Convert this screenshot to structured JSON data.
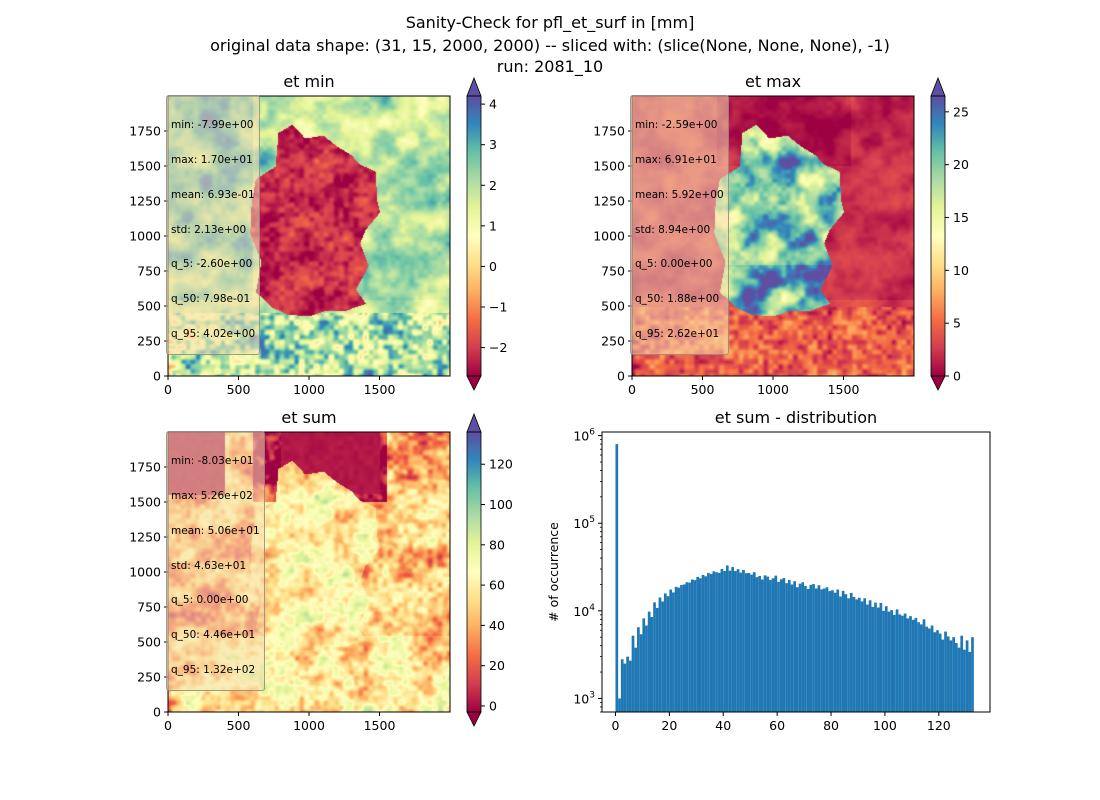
{
  "figure": {
    "title_lines": [
      "Sanity-Check for pfl_et_surf in [mm]",
      "original data shape: (31, 15, 2000, 2000) -- sliced with: (slice(None, None, None), -1)",
      "run: 2081_10"
    ],
    "colormap": "Spectral",
    "colormap_stops": [
      "#9e0142",
      "#d53e4f",
      "#f46d43",
      "#fdae61",
      "#fee08b",
      "#ffffbf",
      "#e6f598",
      "#abdda4",
      "#66c2a5",
      "#3288bd",
      "#5e4fa2"
    ],
    "hist_color": "#1f77b4",
    "statbox_color": "#f5deb3"
  },
  "chart_data": [
    {
      "type": "heatmap",
      "title": "et min",
      "xlim": [
        0,
        2000
      ],
      "ylim": [
        0,
        2000
      ],
      "xticks": [
        0,
        500,
        1000,
        1500
      ],
      "yticks": [
        0,
        250,
        500,
        750,
        1000,
        1250,
        1500,
        1750
      ],
      "colorbar": {
        "vmin": -2.7,
        "vmax": 4.2,
        "ticks": [
          -2,
          -1,
          0,
          1,
          2,
          3,
          4
        ],
        "extend": "both"
      },
      "stats": [
        "min: -7.99e+00",
        "max: 1.70e+01",
        "mean: 6.93e-01",
        "std: 2.13e+00",
        "q_5: -2.60e+00",
        "q_50: 7.98e-01",
        "q_95: 4.02e+00"
      ],
      "field": {
        "inside_germany": -2.2,
        "outside_south": 1.8,
        "outside_west": 2.6,
        "outside_north": 2.0,
        "outside_east": 2.0
      }
    },
    {
      "type": "heatmap",
      "title": "et max",
      "xlim": [
        0,
        2000
      ],
      "ylim": [
        0,
        2000
      ],
      "xticks": [
        0,
        500,
        1000,
        1500
      ],
      "yticks": [
        0,
        250,
        500,
        750,
        1000,
        1250,
        1500,
        1750
      ],
      "colorbar": {
        "vmin": 0,
        "vmax": 26.5,
        "ticks": [
          0,
          5,
          10,
          15,
          20,
          25
        ],
        "extend": "both"
      },
      "stats": [
        "min: -2.59e+00",
        "max: 6.91e+01",
        "mean: 5.92e+00",
        "std: 8.94e+00",
        "q_5: 0.00e+00",
        "q_50: 1.88e+00",
        "q_95: 2.62e+01"
      ],
      "field": {
        "inside_germany": 20,
        "outside_south": 3,
        "outside_west": 2,
        "outside_north": 1,
        "outside_east": 2
      }
    },
    {
      "type": "heatmap",
      "title": "et sum",
      "xlim": [
        0,
        2000
      ],
      "ylim": [
        0,
        2000
      ],
      "xticks": [
        0,
        500,
        1000,
        1500
      ],
      "yticks": [
        0,
        250,
        500,
        750,
        1000,
        1250,
        1500,
        1750
      ],
      "colorbar": {
        "vmin": -3,
        "vmax": 136,
        "ticks": [
          0,
          20,
          40,
          60,
          80,
          100,
          120
        ],
        "extend": "both"
      },
      "stats": [
        "min: -8.03e+01",
        "max: 5.26e+02",
        "mean: 5.06e+01",
        "std: 4.63e+01",
        "q_5: 0.00e+00",
        "q_50: 4.46e+01",
        "q_95: 1.32e+02"
      ],
      "field": {
        "inside_germany": 60,
        "outside_south": 55,
        "outside_west": 40,
        "outside_north": 0,
        "outside_east": 45
      }
    },
    {
      "type": "bar",
      "title": "et sum - distribution",
      "xlabel": "",
      "ylabel": "# of occurrence",
      "xlim": [
        -5,
        139
      ],
      "ylim": [
        700,
        1100000
      ],
      "yscale": "log",
      "xticks": [
        0,
        20,
        40,
        60,
        80,
        100,
        120
      ],
      "yticks": [
        1000,
        10000,
        100000,
        1000000
      ],
      "ytick_labels": [
        [
          "10",
          "3"
        ],
        [
          "10",
          "4"
        ],
        [
          "10",
          "5"
        ],
        [
          "10",
          "6"
        ]
      ],
      "bin_start": 0,
      "bin_width": 1,
      "counts": [
        800000,
        1000,
        2800,
        2500,
        3000,
        2700,
        5200,
        3800,
        6500,
        5400,
        8200,
        6800,
        9800,
        8500,
        12500,
        10800,
        14200,
        12800,
        15800,
        14700,
        17500,
        16200,
        18800,
        18400,
        19700,
        20000,
        21200,
        21000,
        22800,
        22400,
        24400,
        23500,
        25700,
        24800,
        27100,
        26300,
        28300,
        27600,
        27100,
        30100,
        28500,
        33000,
        28700,
        31600,
        28500,
        29900,
        27300,
        29300,
        26900,
        27000,
        25900,
        27600,
        24200,
        25000,
        22800,
        25400,
        24600,
        22500,
        23500,
        25200,
        21400,
        22900,
        23700,
        20700,
        22500,
        20000,
        21800,
        18600,
        20400,
        21200,
        19200,
        17800,
        19800,
        20200,
        18000,
        19600,
        17600,
        18000,
        18600,
        16800,
        17200,
        16100,
        17500,
        14600,
        16900,
        15500,
        13900,
        16000,
        14400,
        13500,
        14100,
        12800,
        13900,
        11800,
        13200,
        11100,
        12400,
        10900,
        12300,
        10000,
        11300,
        9800,
        10200,
        9000,
        10400,
        9100,
        8800,
        9300,
        8200,
        8700,
        7900,
        8300,
        7400,
        7000,
        8000,
        6600,
        6300,
        6800,
        5700,
        6000,
        5500,
        4700,
        5800,
        5100,
        4600,
        5000,
        4300,
        3800,
        5200,
        3600,
        4600,
        3400,
        5000
      ]
    }
  ]
}
